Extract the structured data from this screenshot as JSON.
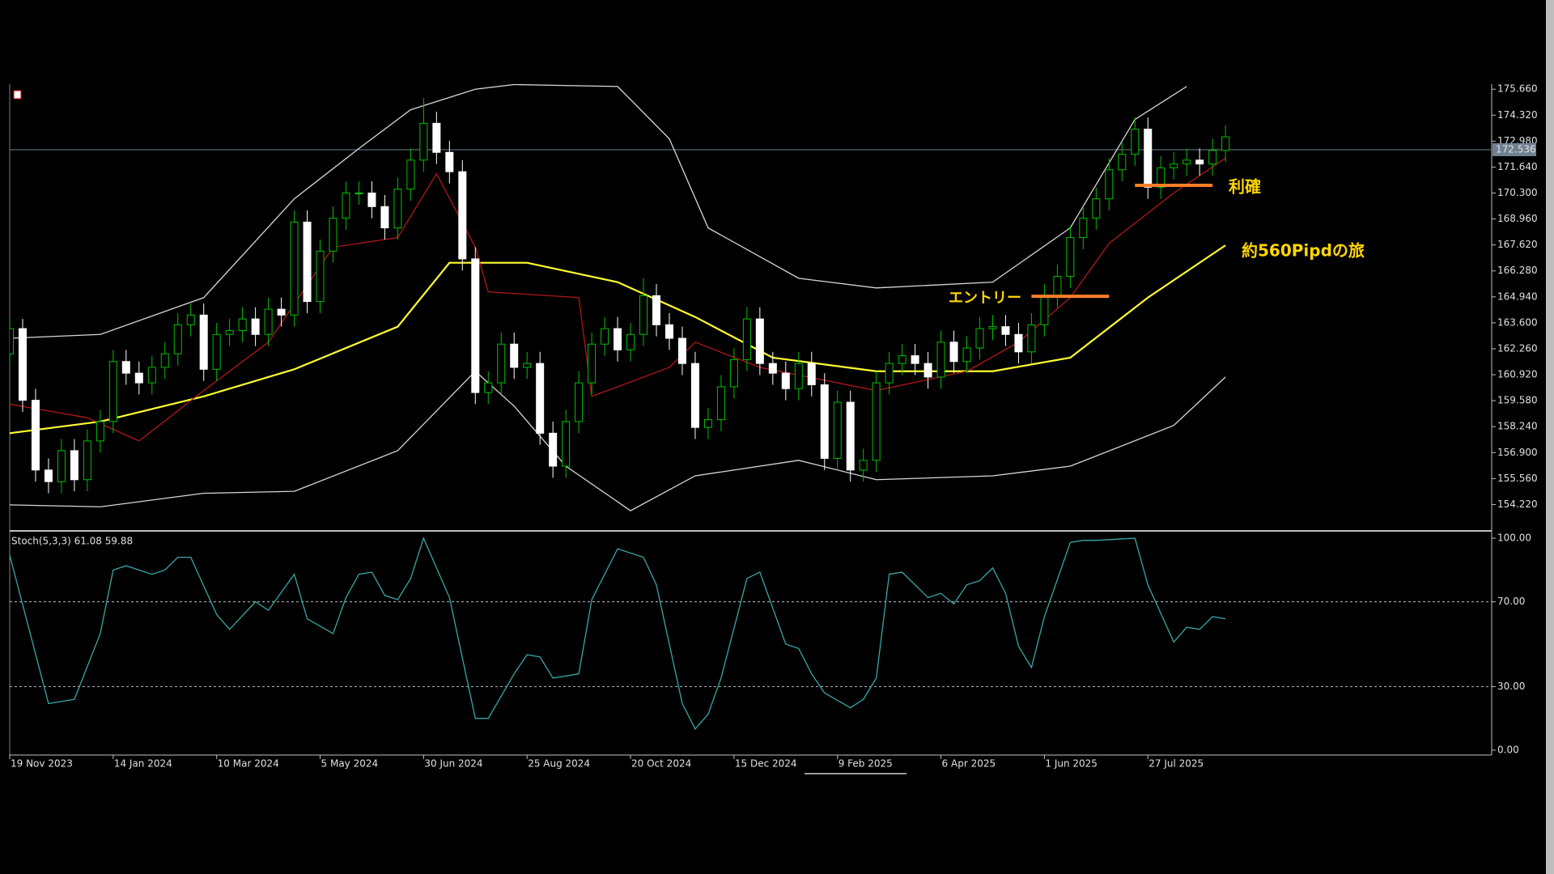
{
  "chart_data": [
    {
      "type": "candlestick",
      "categories": [
        "19 Nov 2023",
        null,
        null,
        null,
        null,
        null,
        null,
        null,
        "14 Jan 2024",
        null,
        null,
        null,
        null,
        null,
        null,
        null,
        "10 Mar 2024",
        null,
        null,
        null,
        null,
        null,
        null,
        null,
        "5 May 2024",
        null,
        null,
        null,
        null,
        null,
        null,
        null,
        "30 Jun 2024",
        null,
        null,
        null,
        null,
        null,
        null,
        null,
        "25 Aug 2024",
        null,
        null,
        null,
        null,
        null,
        null,
        null,
        "20 Oct 2024",
        null,
        null,
        null,
        null,
        null,
        null,
        null,
        "15 Dec 2024",
        null,
        null,
        null,
        null,
        null,
        null,
        null,
        "9 Feb 2025",
        null,
        null,
        null,
        null,
        null,
        null,
        null,
        "6 Apr 2025",
        null,
        null,
        null,
        null,
        null,
        null,
        null,
        "1 Jun 2025",
        null,
        null,
        null,
        null,
        null,
        null,
        null,
        "27 Jul 2025",
        null,
        null,
        null,
        null,
        null,
        null
      ],
      "open": [
        162.0,
        163.3,
        159.6,
        156.0,
        155.4,
        157.0,
        155.5,
        157.5,
        158.5,
        161.6,
        161.0,
        160.5,
        161.3,
        162.0,
        163.5,
        164.0,
        161.2,
        163.0,
        163.2,
        163.8,
        163.0,
        164.3,
        164.0,
        168.8,
        164.7,
        167.3,
        169.0,
        170.3,
        170.3,
        169.6,
        168.5,
        170.5,
        172.0,
        173.9,
        172.4,
        171.4,
        166.9,
        160.0,
        160.5,
        162.5,
        161.3,
        161.5,
        157.9,
        156.2,
        158.5,
        160.5,
        162.5,
        163.3,
        162.2,
        163.0,
        165.0,
        163.5,
        162.8,
        161.5,
        158.2,
        158.6,
        160.3,
        161.7,
        163.8,
        161.5,
        161.0,
        160.2,
        161.5,
        160.4,
        156.6,
        159.5,
        156.0,
        156.5,
        160.5,
        161.5,
        161.9,
        161.5,
        160.8,
        162.6,
        161.6,
        162.3,
        163.3,
        163.4,
        163.0,
        162.1,
        163.5,
        165.0,
        166.0,
        168.0,
        169.0,
        170.0,
        171.5,
        172.3,
        173.6,
        170.6,
        171.6,
        171.8,
        172.0,
        171.8,
        172.5
      ],
      "high": [
        163.9,
        163.8,
        160.2,
        156.6,
        157.6,
        157.6,
        158.1,
        159.1,
        162.2,
        162.2,
        161.6,
        161.9,
        162.6,
        164.1,
        164.6,
        164.6,
        163.6,
        163.8,
        164.4,
        164.4,
        164.9,
        164.9,
        169.4,
        169.4,
        167.9,
        169.6,
        170.9,
        170.9,
        170.9,
        170.2,
        171.1,
        172.6,
        175.2,
        174.5,
        173.0,
        172.0,
        167.5,
        161.1,
        163.1,
        163.1,
        162.1,
        162.1,
        158.5,
        159.1,
        161.1,
        163.1,
        163.9,
        163.9,
        163.6,
        165.9,
        165.6,
        164.1,
        163.4,
        162.1,
        159.2,
        160.9,
        162.3,
        164.4,
        164.4,
        162.1,
        161.6,
        162.1,
        162.1,
        161.0,
        160.1,
        160.1,
        157.1,
        161.1,
        162.1,
        162.5,
        162.5,
        162.1,
        163.2,
        163.2,
        162.9,
        163.9,
        164.0,
        164.0,
        163.6,
        164.1,
        165.6,
        166.6,
        168.6,
        169.6,
        170.6,
        172.1,
        172.9,
        174.2,
        174.2,
        172.2,
        172.4,
        172.6,
        172.6,
        173.1,
        173.8
      ],
      "low": [
        161.4,
        159.0,
        155.4,
        154.8,
        154.8,
        154.9,
        154.9,
        156.9,
        157.9,
        160.4,
        159.9,
        159.9,
        160.7,
        161.4,
        162.9,
        160.6,
        160.6,
        162.4,
        162.6,
        162.4,
        162.4,
        163.4,
        163.4,
        164.1,
        164.1,
        166.7,
        168.4,
        169.7,
        169.0,
        167.9,
        167.9,
        169.9,
        171.4,
        171.8,
        170.8,
        166.3,
        159.4,
        159.4,
        159.9,
        160.7,
        160.7,
        157.3,
        155.6,
        155.6,
        157.9,
        159.9,
        161.9,
        161.6,
        161.6,
        162.4,
        162.9,
        162.2,
        160.9,
        157.6,
        157.6,
        158.0,
        159.7,
        161.1,
        160.9,
        160.4,
        159.6,
        159.6,
        159.8,
        156.0,
        156.0,
        155.4,
        155.4,
        155.9,
        159.9,
        160.9,
        160.9,
        160.2,
        160.2,
        161.0,
        161.0,
        161.7,
        162.7,
        162.4,
        161.5,
        161.5,
        162.9,
        164.4,
        165.4,
        167.4,
        168.4,
        169.4,
        170.9,
        171.7,
        170.0,
        170.0,
        171.0,
        171.2,
        171.2,
        171.2,
        171.9
      ],
      "close": [
        163.3,
        159.6,
        156.0,
        155.4,
        157.0,
        155.5,
        157.5,
        158.5,
        161.6,
        161.0,
        160.5,
        161.3,
        162.0,
        163.5,
        164.0,
        161.2,
        163.0,
        163.2,
        163.8,
        163.0,
        164.3,
        164.0,
        168.8,
        164.7,
        167.3,
        169.0,
        170.3,
        170.3,
        169.6,
        168.5,
        170.5,
        172.0,
        173.9,
        172.4,
        171.4,
        166.9,
        160.0,
        160.5,
        162.5,
        161.3,
        161.5,
        157.9,
        156.2,
        158.5,
        160.5,
        162.5,
        163.3,
        162.2,
        163.0,
        165.0,
        163.5,
        162.8,
        161.5,
        158.2,
        158.6,
        160.3,
        161.7,
        163.8,
        161.5,
        161.0,
        160.2,
        161.5,
        160.4,
        156.6,
        159.5,
        156.0,
        156.5,
        160.5,
        161.5,
        161.9,
        161.5,
        160.8,
        162.6,
        161.6,
        162.3,
        163.3,
        163.4,
        163.0,
        162.1,
        163.5,
        165.0,
        166.0,
        168.0,
        169.0,
        170.0,
        171.5,
        172.3,
        173.6,
        170.6,
        171.6,
        171.8,
        172.0,
        171.8,
        172.5,
        173.2
      ],
      "up_color": "#00c000",
      "down_color": "#ffffff",
      "series": [
        {
          "color": "#ffff33",
          "x": [
            0,
            7,
            15,
            22,
            30,
            34,
            40,
            47,
            53,
            59,
            67,
            76,
            82,
            88,
            94
          ],
          "values": [
            157.9,
            158.5,
            159.8,
            161.2,
            163.4,
            166.7,
            166.7,
            165.7,
            163.9,
            161.8,
            161.1,
            161.1,
            161.8,
            164.9,
            167.6
          ]
        },
        {
          "color": "#b01818",
          "x": [
            0,
            6,
            10,
            15,
            20,
            25,
            30,
            33,
            36,
            37,
            44,
            45,
            51,
            53,
            58,
            67,
            74,
            78,
            82,
            85,
            90,
            94
          ],
          "values": [
            159.4,
            158.7,
            157.5,
            160.1,
            162.6,
            167.5,
            168.0,
            171.3,
            167.5,
            165.2,
            164.9,
            159.8,
            161.3,
            162.6,
            161.3,
            160.1,
            161.1,
            162.6,
            164.9,
            167.7,
            170.3,
            172.1
          ]
        },
        {
          "color": "#d8d8d8",
          "x": [
            0,
            7,
            15,
            22,
            27,
            31,
            36,
            39,
            47,
            51,
            54,
            61,
            67,
            76,
            82,
            87,
            91
          ],
          "values": [
            162.8,
            163.0,
            164.9,
            170.0,
            172.6,
            174.6,
            175.66,
            175.9,
            175.8,
            173.1,
            168.5,
            165.9,
            165.4,
            165.7,
            168.5,
            174.1,
            175.8
          ]
        },
        {
          "color": "#d8d8d8",
          "x": [
            0,
            7,
            15,
            22,
            30,
            36,
            39,
            43,
            48,
            53,
            61,
            67,
            76,
            82,
            90,
            94
          ],
          "values": [
            154.2,
            154.1,
            154.8,
            154.9,
            157.0,
            161.1,
            159.3,
            156.2,
            153.9,
            155.7,
            156.5,
            155.5,
            155.7,
            156.2,
            158.3,
            160.8
          ]
        }
      ],
      "ylim": [
        152.9,
        175.92
      ],
      "yticks": [
        {
          "value": 175.66,
          "label": "175.660"
        },
        {
          "value": 174.32,
          "label": "174.320"
        },
        {
          "value": 172.98,
          "label": "172.980"
        },
        {
          "value": 171.64,
          "label": "171.640"
        },
        {
          "value": 170.3,
          "label": "170.300"
        },
        {
          "value": 168.96,
          "label": "168.960"
        },
        {
          "value": 167.62,
          "label": "167.620"
        },
        {
          "value": 166.28,
          "label": "166.280"
        },
        {
          "value": 164.94,
          "label": "164.940"
        },
        {
          "value": 163.6,
          "label": "163.600"
        },
        {
          "value": 162.26,
          "label": "162.260"
        },
        {
          "value": 160.92,
          "label": "160.920"
        },
        {
          "value": 159.58,
          "label": "159.580"
        },
        {
          "value": 158.24,
          "label": "158.240"
        },
        {
          "value": 156.9,
          "label": "156.900"
        },
        {
          "value": 155.56,
          "label": "155.560"
        },
        {
          "value": 154.22,
          "label": "154.220"
        }
      ],
      "last_price": {
        "value": 172.536,
        "label": "172.536"
      },
      "annotations": [
        {
          "text": "利確",
          "value": 170.7,
          "x": [
            87,
            93
          ],
          "color": "#ff7f27"
        },
        {
          "text": "エントリー",
          "value": 164.97,
          "x": [
            79,
            85
          ],
          "color": "#ff7f27"
        },
        {
          "text": "約560Pipdの旅"
        }
      ]
    },
    {
      "type": "line",
      "title": "Stoch(5,3,3) 61.08 59.88",
      "series": [
        {
          "color": "#3aa6a6",
          "x": [
            0,
            3,
            5,
            7,
            8,
            9,
            11,
            12,
            13,
            14,
            16,
            17,
            19,
            20,
            22,
            23,
            25,
            26,
            27,
            28,
            29,
            30,
            31,
            32,
            34,
            36,
            37,
            39,
            40,
            41,
            42,
            44,
            45,
            47,
            49,
            50,
            52,
            53,
            54,
            55,
            57,
            58,
            60,
            61,
            62,
            63,
            65,
            66,
            67,
            68,
            69,
            71,
            72,
            73,
            74,
            75,
            76,
            77,
            78,
            79,
            80,
            82,
            83,
            84,
            87,
            88,
            90,
            91,
            92,
            93,
            94
          ],
          "values": [
            92,
            22,
            24,
            55,
            85,
            87,
            83,
            85,
            91,
            91,
            64,
            57,
            70,
            66,
            83,
            62,
            55,
            72,
            83,
            84,
            73,
            71,
            81,
            100,
            72,
            15,
            15,
            36,
            45,
            44,
            34,
            36,
            71,
            95,
            91,
            78,
            22,
            10,
            17,
            34,
            81,
            84,
            50,
            48,
            36,
            27,
            20,
            24,
            34,
            83,
            84,
            72,
            74,
            69,
            78,
            80,
            86,
            74,
            49,
            39,
            63,
            98,
            99,
            99,
            100,
            78,
            51,
            58,
            57,
            63,
            62
          ]
        }
      ],
      "ylim": [
        -2.3,
        102.7
      ],
      "yticks": [
        {
          "value": 100,
          "label": "100.00"
        },
        {
          "value": 70,
          "label": "70.00"
        },
        {
          "value": 30,
          "label": "30.00"
        },
        {
          "value": 0,
          "label": "0.00"
        }
      ],
      "levels": [
        70,
        30
      ]
    }
  ]
}
